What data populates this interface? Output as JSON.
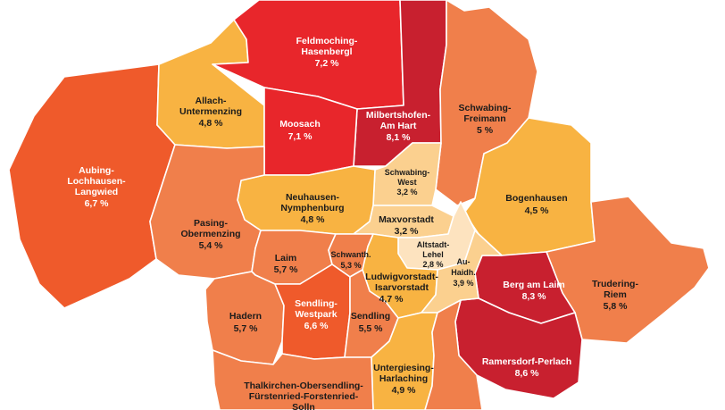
{
  "colors": {
    "deep_red": "#c8202f",
    "red": "#e8262b",
    "orange_red": "#ef5a2b",
    "orange": "#f07f4b",
    "light_orange": "#f4a05f",
    "amber": "#f8b342",
    "pale": "#fbd08f",
    "very_pale": "#fde3bf",
    "border": "#ffffff"
  },
  "districts": [
    {
      "name1": "Feldmoching-",
      "name2": "Hasenbergl",
      "value": "7,2 %"
    },
    {
      "name1": "Allach-",
      "name2": "Untermenzing",
      "value": "4,8 %"
    },
    {
      "name1": "Moosach",
      "name2": "",
      "value": "7,1 %"
    },
    {
      "name1": "Milbertshofen-",
      "name2": "Am Hart",
      "value": "8,1 %"
    },
    {
      "name1": "Schwabing-",
      "name2": "Freimann",
      "value": "5 %"
    },
    {
      "name1": "Aubing-",
      "name2": "Lochhausen-",
      "name3": "Langwied",
      "value": "6,7 %"
    },
    {
      "name1": "Schwabing-",
      "name2": "West",
      "value": "3,2 %"
    },
    {
      "name1": "Neuhausen-",
      "name2": "Nymphenburg",
      "value": "4,8 %"
    },
    {
      "name1": "Bogenhausen",
      "name2": "",
      "value": "4,5 %"
    },
    {
      "name1": "Maxvorstadt",
      "name2": "",
      "value": "3,2 %"
    },
    {
      "name1": "Pasing-",
      "name2": "Obermenzing",
      "value": "5,4 %"
    },
    {
      "name1": "Altstadt-",
      "name2": "Lehel",
      "value": "2,8 %"
    },
    {
      "name1": "Laim",
      "name2": "",
      "value": "5,7 %"
    },
    {
      "name1": "Schwanth.",
      "name2": "",
      "value": "5,3 %"
    },
    {
      "name1": "Au-",
      "name2": "Haidh.",
      "value": "3,9 %"
    },
    {
      "name1": "Berg am Laim",
      "name2": "",
      "value": "8,3 %"
    },
    {
      "name1": "Trudering-",
      "name2": "Riem",
      "value": "5,8 %"
    },
    {
      "name1": "Ludwigvorstadt-",
      "name2": "Isarvorstadt",
      "value": "4,7 %"
    },
    {
      "name1": "Hadern",
      "name2": "",
      "value": "5,7 %"
    },
    {
      "name1": "Sendling-",
      "name2": "Westpark",
      "value": "6,6 %"
    },
    {
      "name1": "Sendling",
      "name2": "",
      "value": "5,5 %"
    },
    {
      "name1": "Ramersdorf-Perlach",
      "name2": "",
      "value": "8,6 %"
    },
    {
      "name1": "Untergiesing-",
      "name2": "Harlaching",
      "value": "4,9 %"
    },
    {
      "name1": "Thalkirchen-Obersendling-",
      "name2": "Fürstenried-Forstenried-",
      "name3": "Solln",
      "value": ""
    }
  ]
}
